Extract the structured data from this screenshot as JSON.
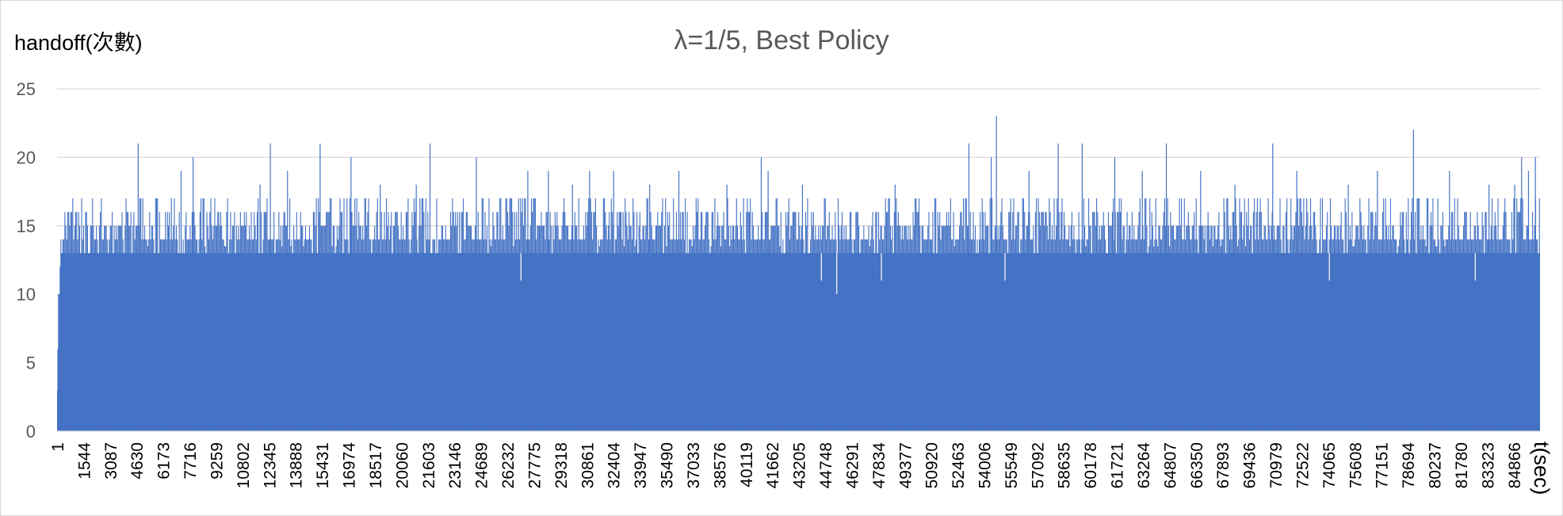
{
  "chart_data": {
    "type": "bar",
    "title": "λ=1/5, Best Policy",
    "ylabel": "handoff(次數)",
    "xlabel": "t(sec)",
    "ylim": [
      0,
      25
    ],
    "y_ticks": [
      "0",
      "5",
      "10",
      "15",
      "20",
      "25"
    ],
    "x_range": [
      1,
      86400
    ],
    "x_tick_labels": [
      "1",
      "1544",
      "3087",
      "4630",
      "6173",
      "7716",
      "9259",
      "10802",
      "12345",
      "13888",
      "15431",
      "16974",
      "18517",
      "20060",
      "21603",
      "23146",
      "24689",
      "26232",
      "27775",
      "29318",
      "30861",
      "32404",
      "33947",
      "35490",
      "37033",
      "38576",
      "40119",
      "41662",
      "43205",
      "44748",
      "46291",
      "47834",
      "49377",
      "50920",
      "52463",
      "54006",
      "55549",
      "57092",
      "58635",
      "60178",
      "61721",
      "63264",
      "64807",
      "66350",
      "67893",
      "69436",
      "70979",
      "72522",
      "74065",
      "75608",
      "77151",
      "78694",
      "80237",
      "81780",
      "83323",
      "84866"
    ],
    "grid": true,
    "legend": "none",
    "color": "#4472C4",
    "series": [
      {
        "values_summary": "handoff counts per second; dense bars mostly 12–17, minimum ~10, peaks ~21–23",
        "baseline_fill_level": 13,
        "startup": [
          [
            1,
            3
          ],
          [
            20,
            6
          ],
          [
            60,
            10
          ],
          [
            150,
            12
          ]
        ],
        "peaks": [
          [
            4700,
            21
          ],
          [
            7200,
            19
          ],
          [
            7900,
            20
          ],
          [
            11800,
            18
          ],
          [
            12400,
            21
          ],
          [
            13400,
            19
          ],
          [
            15300,
            21
          ],
          [
            17100,
            20
          ],
          [
            18800,
            18
          ],
          [
            20900,
            18
          ],
          [
            21700,
            21
          ],
          [
            24400,
            20
          ],
          [
            27400,
            19
          ],
          [
            28600,
            19
          ],
          [
            30000,
            18
          ],
          [
            31000,
            19
          ],
          [
            32400,
            19
          ],
          [
            34500,
            18
          ],
          [
            36200,
            19
          ],
          [
            39000,
            18
          ],
          [
            41000,
            20
          ],
          [
            41400,
            19
          ],
          [
            43400,
            18
          ],
          [
            48800,
            18
          ],
          [
            53100,
            21
          ],
          [
            54400,
            20
          ],
          [
            54700,
            23
          ],
          [
            56600,
            19
          ],
          [
            58300,
            21
          ],
          [
            59700,
            21
          ],
          [
            61600,
            20
          ],
          [
            63200,
            19
          ],
          [
            64600,
            21
          ],
          [
            66600,
            19
          ],
          [
            68600,
            18
          ],
          [
            70800,
            21
          ],
          [
            72200,
            19
          ],
          [
            75200,
            18
          ],
          [
            76900,
            19
          ],
          [
            79000,
            22
          ],
          [
            81100,
            19
          ],
          [
            83400,
            18
          ],
          [
            84900,
            18
          ],
          [
            85300,
            20
          ],
          [
            85700,
            19
          ],
          [
            86100,
            20
          ]
        ],
        "dips": [
          [
            27000,
            11
          ],
          [
            44500,
            11
          ],
          [
            45400,
            10
          ],
          [
            48000,
            11
          ],
          [
            55200,
            11
          ],
          [
            74100,
            11
          ],
          [
            82600,
            11
          ]
        ]
      }
    ]
  }
}
